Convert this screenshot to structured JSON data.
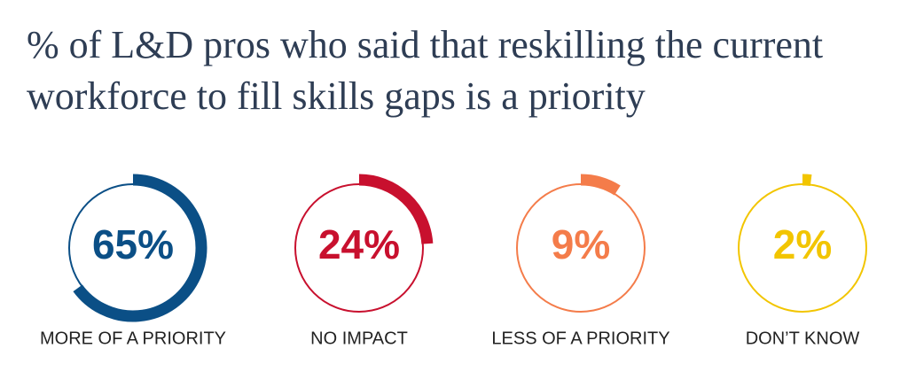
{
  "chart_data": {
    "type": "donut",
    "title": "% of L&D pros who said that reskilling the current workforce to fill skills gaps is a priority",
    "categories": [
      "MORE OF A PRIORITY",
      "NO IMPACT",
      "LESS OF A PRIORITY",
      "DON’T KNOW"
    ],
    "values": [
      65,
      24,
      9,
      2
    ],
    "value_labels": [
      "65%",
      "24%",
      "9%",
      "2%"
    ],
    "colors": [
      "#0b4f86",
      "#c8102e",
      "#f47c4a",
      "#f2c500"
    ],
    "ylim": [
      0,
      100
    ]
  }
}
